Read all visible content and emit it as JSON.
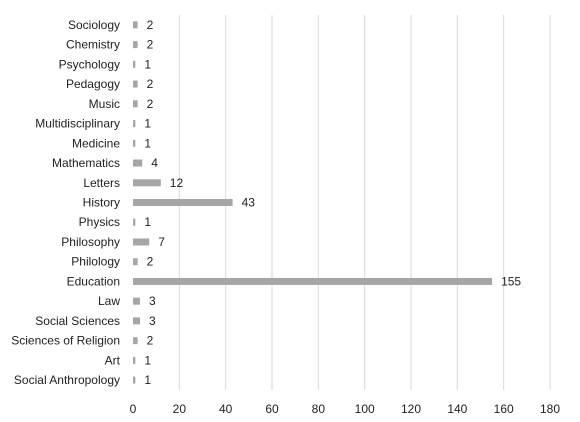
{
  "chart_data": {
    "type": "bar",
    "orientation": "horizontal",
    "categories": [
      "Sociology",
      "Chemistry",
      "Psychology",
      "Pedagogy",
      "Music",
      "Multidisciplinary",
      "Medicine",
      "Mathematics",
      "Letters",
      "History",
      "Physics",
      "Philosophy",
      "Philology",
      "Education",
      "Law",
      "Social Sciences",
      "Sciences of Religion",
      "Art",
      "Social Anthropology"
    ],
    "values": [
      2,
      2,
      1,
      2,
      2,
      1,
      1,
      4,
      12,
      43,
      1,
      7,
      2,
      155,
      3,
      3,
      2,
      1,
      1
    ],
    "data_labels": [
      "2",
      "2",
      "1",
      "2",
      "2",
      "1",
      "1",
      "4",
      "12",
      "43",
      "1",
      "7",
      "2",
      "155",
      "3",
      "3",
      "2",
      "1",
      "1"
    ],
    "xlim": [
      0,
      180
    ],
    "x_ticks": [
      0,
      20,
      40,
      60,
      80,
      100,
      120,
      140,
      160,
      180
    ],
    "x_tick_labels": [
      "0",
      "20",
      "40",
      "60",
      "80",
      "100",
      "120",
      "140",
      "160",
      "180"
    ],
    "grid": "vertical",
    "legend": "none",
    "bar_color": "#a6a6a6",
    "title": "",
    "xlabel": "",
    "ylabel": ""
  }
}
